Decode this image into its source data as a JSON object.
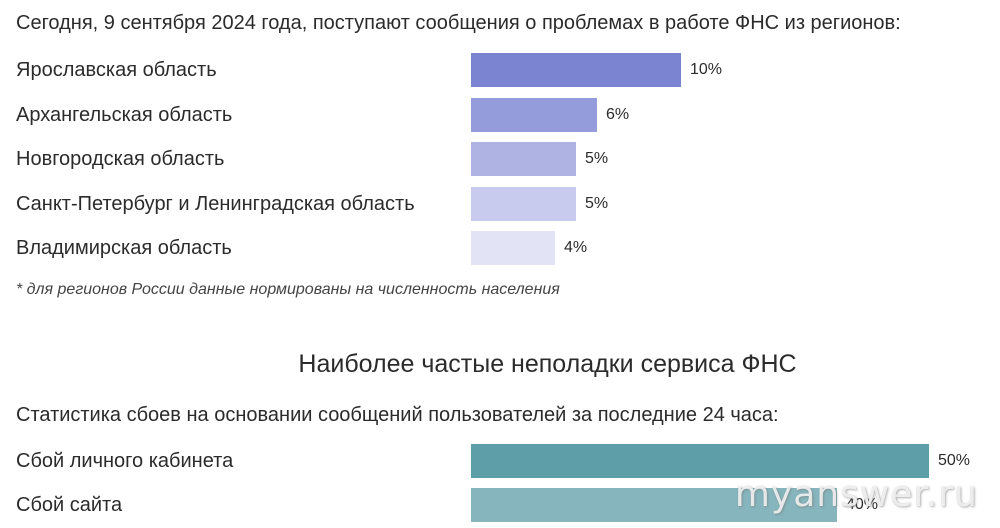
{
  "headline": "Сегодня, 9 сентября 2024 года, поступают сообщения о проблемах в работе ФНС из регионов:",
  "footnote": "* для регионов России данные нормированы на численность населения",
  "section_title": "Наиболее частые неполадки сервиса ФНС",
  "section_subtitle": "Статистика сбоев на основании сообщений пользователей за последние 24 часа:",
  "watermark": "myanswer.ru",
  "chart_data": [
    {
      "type": "bar",
      "orientation": "horizontal",
      "title": "Сегодня, 9 сентября 2024 года, поступают сообщения о проблемах в работе ФНС из регионов:",
      "categories": [
        "Ярославская область",
        "Архангельская область",
        "Новгородская область",
        "Санкт-Петербург и Ленинградская область",
        "Владимирская область"
      ],
      "values": [
        10,
        6,
        5,
        5,
        4
      ],
      "value_labels": [
        "10%",
        "6%",
        "5%",
        "5%",
        "4%"
      ],
      "colors": [
        "#7b84d0",
        "#959cdb",
        "#aeb3e4",
        "#c8cbee",
        "#e2e4f6"
      ],
      "xlim": [
        0,
        10
      ],
      "grid": false,
      "legend": "none"
    },
    {
      "type": "bar",
      "orientation": "horizontal",
      "title": "Наиболее частые неполадки сервиса ФНС",
      "subtitle": "Статистика сбоев на основании сообщений пользователей за последние 24 часа:",
      "categories": [
        "Сбой личного кабинета",
        "Сбой сайта"
      ],
      "values": [
        50,
        40
      ],
      "value_labels": [
        "50%",
        "40%"
      ],
      "colors": [
        "#5e9ea9",
        "#86b5bd"
      ],
      "xlim": [
        0,
        50
      ],
      "grid": false,
      "legend": "none"
    }
  ]
}
